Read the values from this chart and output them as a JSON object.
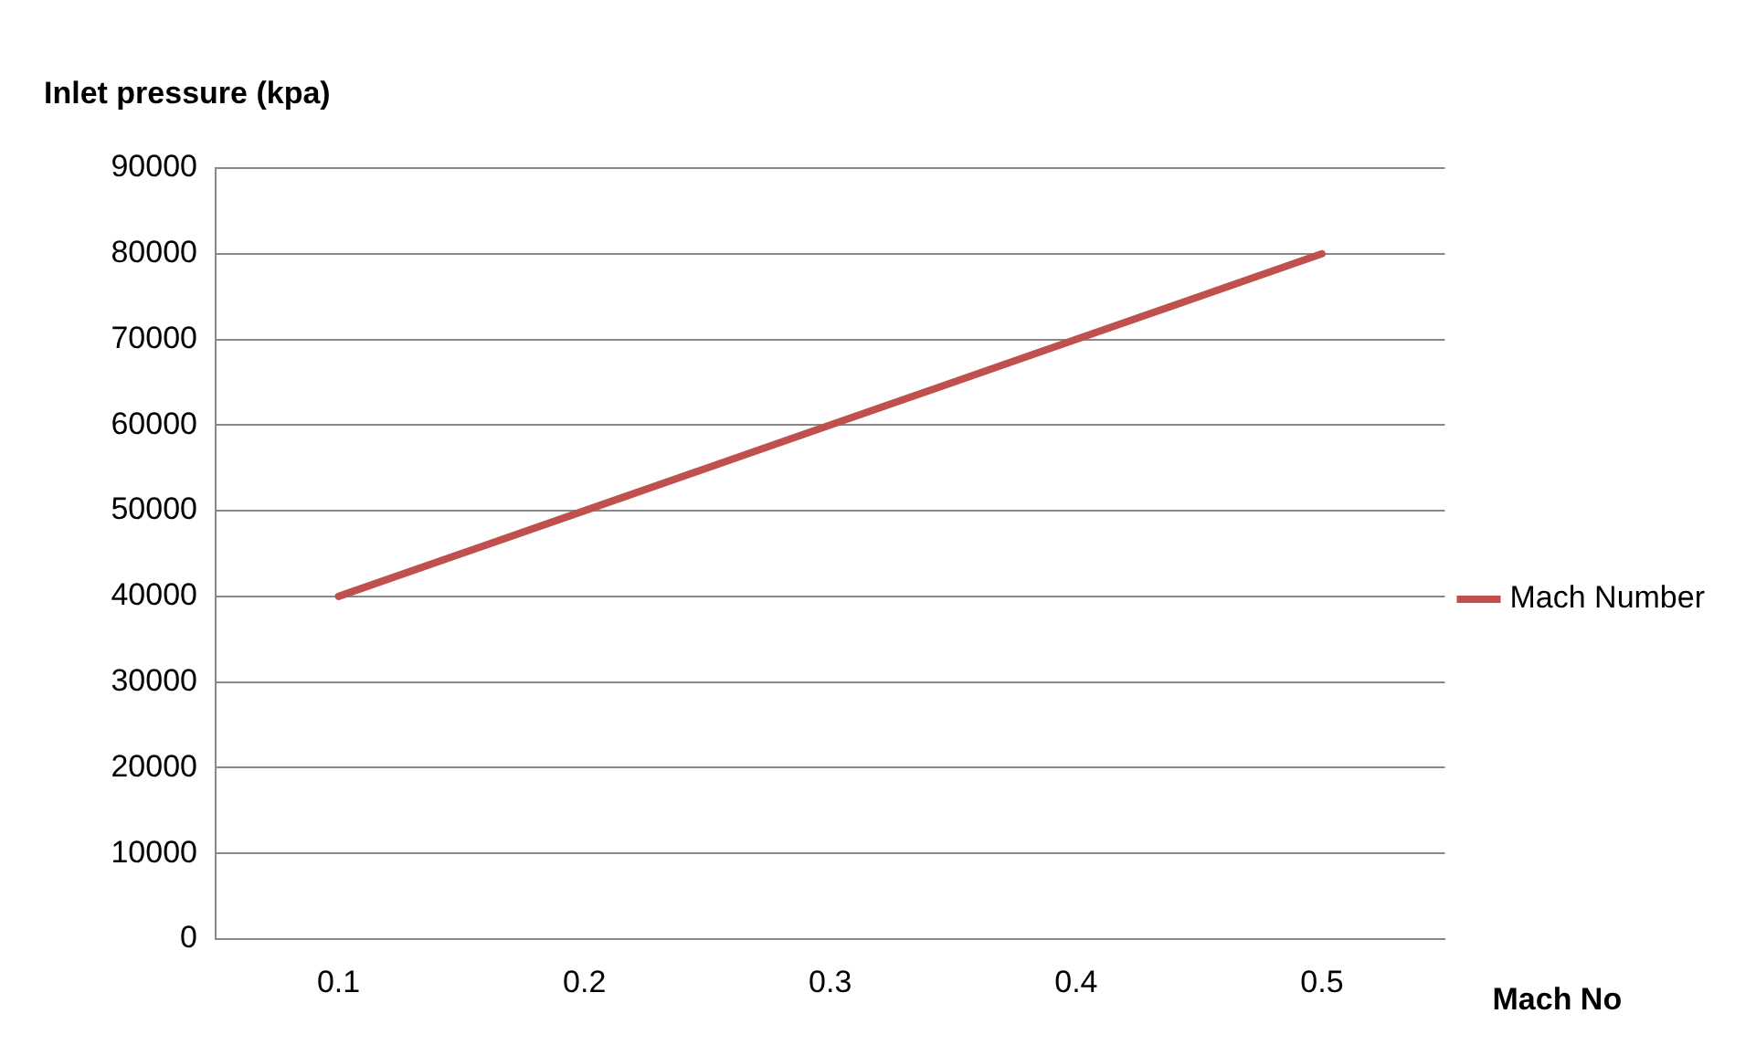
{
  "chart_data": {
    "type": "line",
    "ylabel": "Inlet pressure (kpa)",
    "xlabel": "Mach No",
    "categories": [
      "0.1",
      "0.2",
      "0.3",
      "0.4",
      "0.5"
    ],
    "series": [
      {
        "name": "Mach Number",
        "color": "#c0504d",
        "values": [
          40000,
          50000,
          60000,
          70000,
          80000
        ]
      }
    ],
    "ylim": [
      0,
      90000
    ],
    "yticks": [
      0,
      10000,
      20000,
      30000,
      40000,
      50000,
      60000,
      70000,
      80000,
      90000
    ],
    "grid": "y",
    "legend": "right",
    "marker": "none",
    "line_style": "solid"
  }
}
